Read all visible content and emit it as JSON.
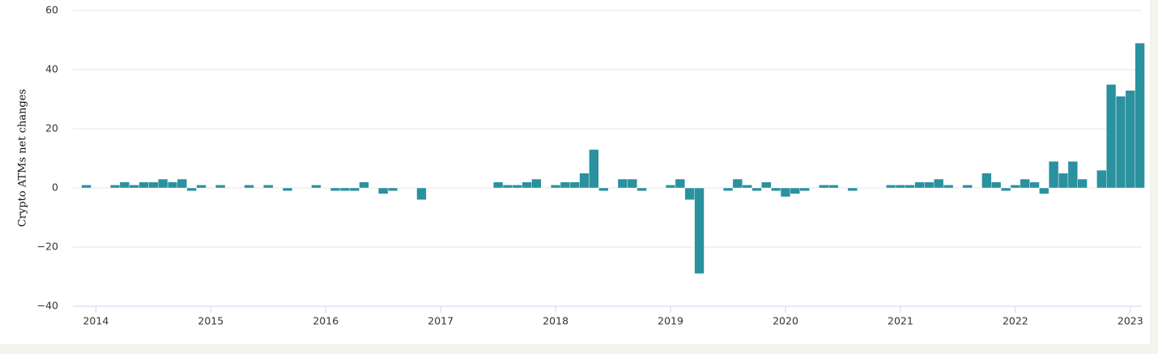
{
  "chart_data": {
    "type": "bar",
    "y_label": "Crypto ATMs net changes",
    "x": [
      2013.917,
      2014,
      2014.083,
      2014.167,
      2014.25,
      2014.333,
      2014.417,
      2014.5,
      2014.583,
      2014.667,
      2014.75,
      2014.833,
      2014.917,
      2015,
      2015.083,
      2015.167,
      2015.25,
      2015.333,
      2015.417,
      2015.5,
      2015.583,
      2015.667,
      2015.75,
      2015.833,
      2015.917,
      2016,
      2016.083,
      2016.167,
      2016.25,
      2016.333,
      2016.417,
      2016.5,
      2016.583,
      2016.667,
      2016.75,
      2016.833,
      2016.917,
      2017,
      2017.083,
      2017.167,
      2017.25,
      2017.333,
      2017.417,
      2017.5,
      2017.583,
      2017.667,
      2017.75,
      2017.833,
      2017.917,
      2018,
      2018.083,
      2018.167,
      2018.25,
      2018.333,
      2018.417,
      2018.5,
      2018.583,
      2018.667,
      2018.75,
      2018.833,
      2018.917,
      2019,
      2019.083,
      2019.167,
      2019.25,
      2019.333,
      2019.417,
      2019.5,
      2019.583,
      2019.667,
      2019.75,
      2019.833,
      2019.917,
      2020,
      2020.083,
      2020.167,
      2020.25,
      2020.333,
      2020.417,
      2020.5,
      2020.583,
      2020.667,
      2020.75,
      2020.833,
      2020.917,
      2021,
      2021.083,
      2021.167,
      2021.25,
      2021.333,
      2021.417,
      2021.5,
      2021.583,
      2021.667,
      2021.75,
      2021.833,
      2021.917,
      2022,
      2022.083,
      2022.167,
      2022.25,
      2022.333,
      2022.417,
      2022.5,
      2022.583,
      2022.667,
      2022.75,
      2022.833,
      2022.917,
      2023,
      2023.083
    ],
    "values": [
      1,
      0,
      0,
      1,
      2,
      1,
      2,
      2,
      3,
      2,
      3,
      -1,
      1,
      0,
      1,
      0,
      0,
      1,
      0,
      1,
      0,
      -1,
      0,
      0,
      1,
      0,
      -1,
      -1,
      -1,
      2,
      0,
      -2,
      -1,
      0,
      0,
      -4,
      0,
      0,
      0,
      0,
      0,
      0,
      0,
      2,
      1,
      1,
      2,
      3,
      0,
      1,
      2,
      2,
      5,
      13,
      -1,
      0,
      3,
      3,
      -1,
      0,
      0,
      1,
      3,
      -4,
      -29,
      0,
      0,
      -1,
      3,
      1,
      -1,
      2,
      -1,
      -3,
      -2,
      -1,
      0,
      1,
      1,
      0,
      -1,
      0,
      0,
      0,
      1,
      1,
      1,
      2,
      2,
      3,
      1,
      0,
      1,
      0,
      5,
      2,
      -1,
      1,
      3,
      2,
      -2,
      9,
      5,
      9,
      3,
      0,
      6,
      35,
      31,
      33,
      49
    ],
    "color": "#2a919e",
    "xlim": [
      2013.8,
      2023.1
    ],
    "xticks": [
      2014,
      2015,
      2016,
      2017,
      2018,
      2019,
      2020,
      2021,
      2022,
      2023
    ],
    "ylim": [
      -40,
      60
    ],
    "yticks": [
      {
        "value": -40,
        "label": "−40"
      },
      {
        "value": -20,
        "label": "−20"
      },
      0,
      20,
      40,
      60
    ],
    "grid": true
  }
}
